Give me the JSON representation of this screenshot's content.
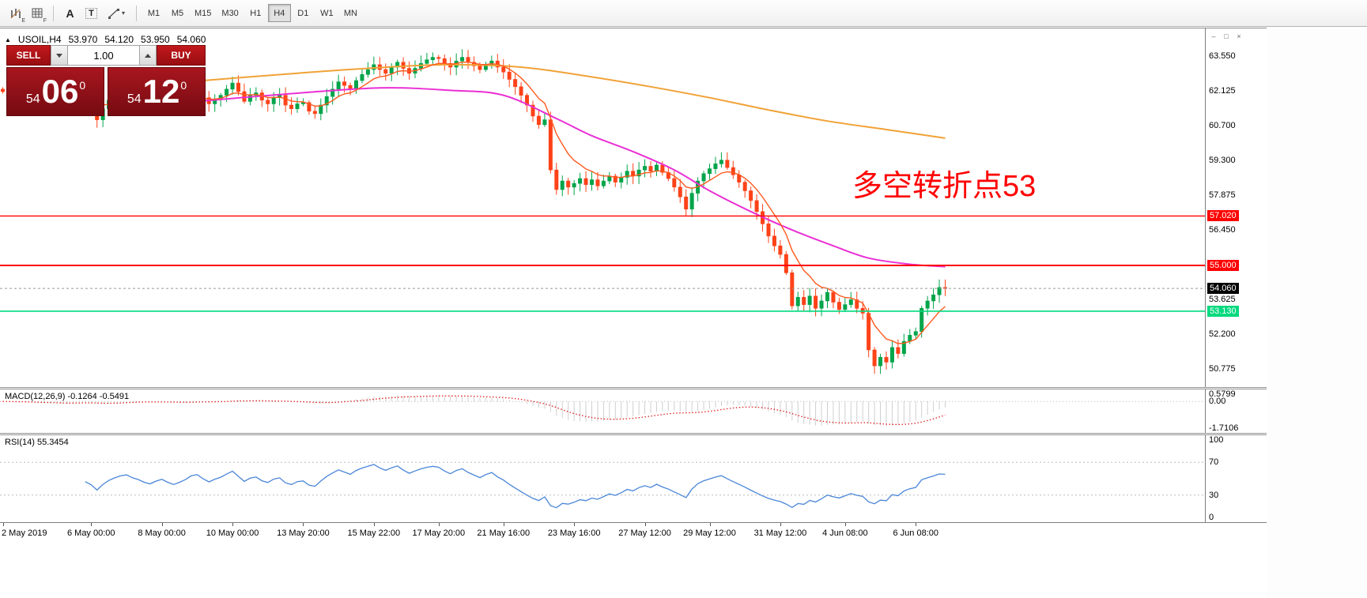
{
  "toolbar": {
    "tool_icons": [
      {
        "name": "bar-chart-tool",
        "badge": "E"
      },
      {
        "name": "grid-tool",
        "badge": "F"
      },
      {
        "name": "text-tool",
        "glyph": "A"
      },
      {
        "name": "textbox-tool",
        "glyph": "T"
      },
      {
        "name": "drawings-tool",
        "caret": "▾"
      }
    ],
    "timeframes": [
      {
        "label": "M1",
        "active": false
      },
      {
        "label": "M5",
        "active": false
      },
      {
        "label": "M15",
        "active": false
      },
      {
        "label": "M30",
        "active": false
      },
      {
        "label": "H1",
        "active": false
      },
      {
        "label": "H4",
        "active": true
      },
      {
        "label": "D1",
        "active": false
      },
      {
        "label": "W1",
        "active": false
      },
      {
        "label": "MN",
        "active": false
      }
    ]
  },
  "window_controls": [
    {
      "name": "minimize-button",
      "glyph": "–"
    },
    {
      "name": "restore-button",
      "glyph": "□"
    },
    {
      "name": "close-button",
      "glyph": "×"
    }
  ],
  "symbol_line": {
    "collapse_icon": "▲",
    "symbol": "USOIL,H4",
    "open": "53.970",
    "high": "54.120",
    "low": "53.950",
    "close": "54.060"
  },
  "trade_panel": {
    "sell_label": "SELL",
    "buy_label": "BUY",
    "volume": "1.00",
    "sell_price": {
      "prefix": "54",
      "big": "06",
      "sup": "0"
    },
    "buy_price": {
      "prefix": "54",
      "big": "12",
      "sup": "0"
    }
  },
  "annotation": {
    "text": "多空转折点53",
    "color": "#ff0000"
  },
  "chart_data": {
    "type": "candlestick",
    "symbol": "USOIL",
    "timeframe": "H4",
    "up_color": "#00a44a",
    "down_color": "#ff4218",
    "price_axis": {
      "min": 50.0,
      "max": 64.68,
      "grid": [
        {
          "value": 63.55,
          "label": "63.550"
        },
        {
          "value": 62.125,
          "label": "62.125"
        },
        {
          "value": 60.7,
          "label": "60.700"
        },
        {
          "value": 59.3,
          "label": "59.300"
        },
        {
          "value": 57.875,
          "label": "57.875"
        },
        {
          "value": 56.45,
          "label": "56.450"
        },
        {
          "value": 53.625,
          "label": "53.625"
        },
        {
          "value": 52.2,
          "label": "52.200"
        },
        {
          "value": 50.775,
          "label": "50.775"
        }
      ]
    },
    "closes": [
      62.1,
      61.85,
      61.7,
      61.95,
      62.05,
      61.6,
      61.45,
      61.75,
      61.9,
      61.55,
      61.3,
      61.7,
      62.0,
      62.15,
      61.85,
      61.55,
      60.95,
      61.4,
      61.75,
      62.0,
      62.2,
      62.3,
      62.05,
      61.9,
      61.65,
      61.5,
      61.7,
      61.85,
      61.6,
      61.4,
      61.55,
      61.75,
      62.05,
      62.15,
      61.85,
      61.6,
      61.8,
      61.95,
      62.2,
      62.45,
      62.1,
      61.7,
      61.95,
      62.05,
      61.75,
      61.6,
      61.85,
      61.95,
      61.55,
      61.4,
      61.6,
      61.65,
      61.3,
      61.2,
      61.55,
      61.9,
      62.2,
      62.5,
      62.35,
      62.2,
      62.55,
      62.8,
      63.0,
      63.2,
      63.0,
      62.85,
      63.1,
      63.3,
      63.05,
      62.85,
      63.05,
      63.25,
      63.4,
      63.5,
      63.45,
      63.25,
      63.1,
      63.35,
      63.5,
      63.3,
      63.15,
      63.0,
      63.2,
      63.35,
      63.1,
      62.9,
      62.6,
      62.3,
      61.95,
      61.55,
      61.1,
      60.75,
      60.95,
      58.9,
      58.1,
      58.45,
      58.2,
      58.35,
      58.55,
      58.3,
      58.5,
      58.25,
      58.45,
      58.65,
      58.4,
      58.6,
      58.85,
      58.65,
      58.9,
      59.05,
      58.85,
      59.1,
      58.8,
      58.55,
      58.2,
      57.8,
      57.3,
      57.95,
      58.45,
      58.75,
      58.95,
      59.15,
      59.3,
      59.0,
      58.7,
      58.4,
      58.05,
      57.65,
      57.2,
      56.7,
      56.2,
      55.8,
      55.45,
      54.7,
      53.35,
      53.7,
      53.4,
      53.75,
      53.25,
      53.55,
      53.9,
      53.5,
      53.2,
      53.4,
      53.6,
      53.25,
      53.05,
      51.55,
      50.9,
      51.25,
      51.05,
      51.65,
      51.4,
      51.9,
      52.15,
      52.3,
      53.25,
      53.55,
      53.8,
      54.1,
      54.06
    ],
    "mas": [
      {
        "name": "ma-slow-orange",
        "mode": "points",
        "color": "#f1a237",
        "width": 2,
        "points": [
          [
            34,
            62.55
          ],
          [
            50,
            62.85
          ],
          [
            62,
            63.05
          ],
          [
            75,
            63.2
          ],
          [
            88,
            63.1
          ],
          [
            100,
            62.7
          ],
          [
            110,
            62.3
          ],
          [
            120,
            61.85
          ],
          [
            130,
            61.35
          ],
          [
            140,
            60.9
          ],
          [
            150,
            60.55
          ],
          [
            160,
            60.2
          ]
        ]
      },
      {
        "name": "ma-mid-magenta",
        "mode": "points",
        "color": "#ea2fd4",
        "width": 2,
        "points": [
          [
            33,
            61.7
          ],
          [
            48,
            62.0
          ],
          [
            64,
            62.25
          ],
          [
            76,
            62.15
          ],
          [
            85,
            61.95
          ],
          [
            94,
            61.0
          ],
          [
            100,
            60.3
          ],
          [
            107,
            59.65
          ],
          [
            114,
            58.9
          ],
          [
            120,
            58.05
          ],
          [
            127,
            57.2
          ],
          [
            134,
            56.45
          ],
          [
            141,
            55.8
          ],
          [
            147,
            55.3
          ],
          [
            154,
            55.05
          ],
          [
            160,
            54.95
          ]
        ]
      },
      {
        "name": "ma-fast-red",
        "mode": "ema",
        "period": 8,
        "from": 5,
        "color": "#ff5a1e",
        "width": 1.4
      }
    ],
    "hlines": [
      {
        "price": 57.02,
        "label": "57.020",
        "color": "#ff0000",
        "width": 1.4
      },
      {
        "price": 55.0,
        "label": "55.000",
        "color": "#ff0000",
        "width": 2
      },
      {
        "price": 53.13,
        "label": "53.130",
        "color": "#00d97e",
        "width": 1.6
      }
    ],
    "current_price": {
      "value": 54.06,
      "label": "54.060",
      "line_color": "#999999",
      "badge_color": "#000000"
    },
    "x_labels": [
      {
        "text": "2 May 2019",
        "c": 0
      },
      {
        "text": "6 May 00:00",
        "c": 15
      },
      {
        "text": "8 May 00:00",
        "c": 27
      },
      {
        "text": "10 May 00:00",
        "c": 39
      },
      {
        "text": "13 May 20:00",
        "c": 51
      },
      {
        "text": "15 May 22:00",
        "c": 63
      },
      {
        "text": "17 May 20:00",
        "c": 74
      },
      {
        "text": "21 May 16:00",
        "c": 85
      },
      {
        "text": "23 May 16:00",
        "c": 97
      },
      {
        "text": "27 May 12:00",
        "c": 109
      },
      {
        "text": "29 May 12:00",
        "c": 120
      },
      {
        "text": "31 May 12:00",
        "c": 132
      },
      {
        "text": "4 Jun 08:00",
        "c": 143
      },
      {
        "text": "6 Jun 08:00",
        "c": 155
      }
    ],
    "indicators": {
      "macd": {
        "label": "MACD(12,26,9) -0.1264 -0.5491",
        "fast": 12,
        "slow": 26,
        "signal": 9,
        "signal_color": "#e02020",
        "hist_color": "#cfcfcf",
        "axis": [
          {
            "value": 0.5799,
            "label": "0.5799"
          },
          {
            "value": 0.0,
            "label": "0.00"
          },
          {
            "value": -1.7106,
            "label": "-1.7106"
          }
        ]
      },
      "rsi": {
        "label": "RSI(14) 55.3454",
        "period": 14,
        "color": "#4a86d8",
        "levels": [
          70,
          30
        ],
        "axis": [
          {
            "value": 100,
            "label": "100"
          },
          {
            "value": 70,
            "label": "70"
          },
          {
            "value": 30,
            "label": "30"
          },
          {
            "value": 0,
            "label": "0"
          }
        ]
      }
    }
  }
}
